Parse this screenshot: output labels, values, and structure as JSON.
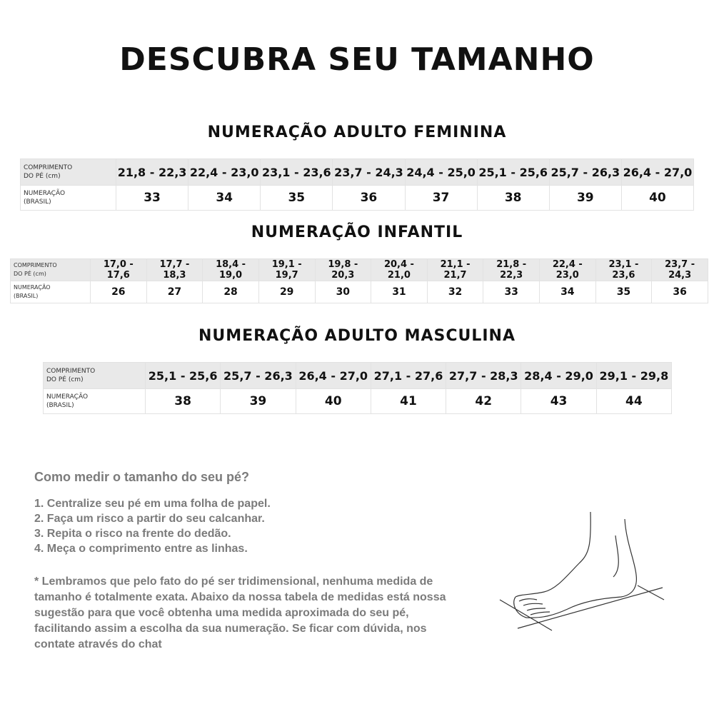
{
  "title": "DESCUBRA SEU TAMANHO",
  "row_labels": {
    "length": "COMPRIMENTO DO PÉ (cm)",
    "size": "NUMERAÇÃO (BRASIL)"
  },
  "tables": [
    {
      "title": "NUMERAÇÃO ADULTO FEMININA",
      "lengths": [
        "21,8 - 22,3",
        "22,4 - 23,0",
        "23,1 - 23,6",
        "23,7 - 24,3",
        "24,4 - 25,0",
        "25,1 - 25,6",
        "25,7 - 26,3",
        "26,4 - 27,0"
      ],
      "sizes": [
        "33",
        "34",
        "35",
        "36",
        "37",
        "38",
        "39",
        "40"
      ]
    },
    {
      "title": "NUMERAÇÃO INFANTIL",
      "lengths": [
        "17,0 - 17,6",
        "17,7 - 18,3",
        "18,4 - 19,0",
        "19,1 - 19,7",
        "19,8 - 20,3",
        "20,4 - 21,0",
        "21,1 - 21,7",
        "21,8 - 22,3",
        "22,4 - 23,0",
        "23,1 - 23,6",
        "23,7 - 24,3"
      ],
      "sizes": [
        "26",
        "27",
        "28",
        "29",
        "30",
        "31",
        "32",
        "33",
        "34",
        "35",
        "36"
      ]
    },
    {
      "title": "NUMERAÇÃO ADULTO MASCULINA",
      "lengths": [
        "25,1 - 25,6",
        "25,7 - 26,3",
        "26,4 - 27,0",
        "27,1 - 27,6",
        "27,7 - 28,3",
        "28,4 - 29,0",
        "29,1 - 29,8"
      ],
      "sizes": [
        "38",
        "39",
        "40",
        "41",
        "42",
        "43",
        "44"
      ]
    }
  ],
  "howto": {
    "heading": "Como medir o tamanho do seu pé?",
    "steps": [
      "1. Centralize seu pé em uma folha de papel.",
      "2. Faça um risco a partir do seu calcanhar.",
      "3. Repita o risco na frente do dedão.",
      "4. Meça o comprimento entre as linhas."
    ],
    "note": "* Lembramos que pelo fato do pé ser tridimensional, nenhuma medida de tamanho é totalmente exata. Abaixo da nossa tabela de medidas está nossa sugestão para que você obtenha uma medida aproximada do seu pé, facilitando assim a escolha da sua numeração. Se ficar com dúvida, nos contate através do chat"
  }
}
